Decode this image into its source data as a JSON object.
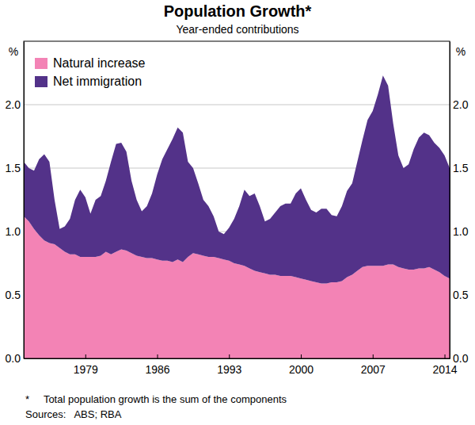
{
  "chart_data": {
    "type": "area",
    "title": "Population Growth*",
    "subtitle": "Year-ended contributions",
    "y_label": "%",
    "footnote": "*     Total population growth is the sum of the components",
    "sources": "Sources:   ABS; RBA",
    "stacked": true,
    "grid": true,
    "legend": "top-left",
    "x": [
      1973,
      1973.5,
      1974,
      1974.5,
      1975,
      1975.5,
      1976,
      1976.5,
      1977,
      1977.5,
      1978,
      1978.5,
      1979,
      1979.5,
      1980,
      1980.5,
      1981,
      1981.5,
      1982,
      1982.5,
      1983,
      1983.5,
      1984,
      1984.5,
      1985,
      1985.5,
      1986,
      1986.5,
      1987,
      1987.5,
      1988,
      1988.5,
      1989,
      1989.5,
      1990,
      1990.5,
      1991,
      1991.5,
      1992,
      1992.5,
      1993,
      1993.5,
      1994,
      1994.5,
      1995,
      1995.5,
      1996,
      1996.5,
      1997,
      1997.5,
      1998,
      1998.5,
      1999,
      1999.5,
      2000,
      2000.5,
      2001,
      2001.5,
      2002,
      2002.5,
      2003,
      2003.5,
      2004,
      2004.5,
      2005,
      2005.5,
      2006,
      2006.5,
      2007,
      2007.5,
      2008,
      2008.5,
      2009,
      2009.5,
      2010,
      2010.5,
      2011,
      2011.5,
      2012,
      2012.5,
      2013,
      2013.5,
      2014,
      2014.5
    ],
    "series": [
      {
        "name": "Natural increase",
        "color": "#f383b5",
        "values": [
          1.12,
          1.08,
          1.02,
          0.97,
          0.93,
          0.91,
          0.9,
          0.87,
          0.84,
          0.82,
          0.82,
          0.8,
          0.8,
          0.8,
          0.8,
          0.81,
          0.84,
          0.82,
          0.84,
          0.86,
          0.85,
          0.83,
          0.81,
          0.8,
          0.79,
          0.79,
          0.78,
          0.77,
          0.77,
          0.76,
          0.78,
          0.76,
          0.8,
          0.83,
          0.82,
          0.81,
          0.8,
          0.8,
          0.79,
          0.78,
          0.77,
          0.75,
          0.74,
          0.73,
          0.71,
          0.69,
          0.68,
          0.67,
          0.66,
          0.66,
          0.65,
          0.65,
          0.65,
          0.64,
          0.63,
          0.62,
          0.61,
          0.6,
          0.59,
          0.59,
          0.6,
          0.6,
          0.61,
          0.64,
          0.66,
          0.69,
          0.72,
          0.73,
          0.73,
          0.73,
          0.73,
          0.74,
          0.74,
          0.72,
          0.71,
          0.7,
          0.7,
          0.71,
          0.71,
          0.72,
          0.7,
          0.68,
          0.65,
          0.63
        ]
      },
      {
        "name": "Net immigration",
        "color": "#533289",
        "values": [
          0.43,
          0.42,
          0.46,
          0.6,
          0.68,
          0.64,
          0.35,
          0.15,
          0.2,
          0.28,
          0.43,
          0.53,
          0.47,
          0.34,
          0.45,
          0.47,
          0.56,
          0.73,
          0.85,
          0.84,
          0.78,
          0.57,
          0.44,
          0.36,
          0.41,
          0.51,
          0.67,
          0.8,
          0.88,
          0.97,
          1.04,
          1.02,
          0.75,
          0.67,
          0.56,
          0.44,
          0.4,
          0.32,
          0.21,
          0.2,
          0.26,
          0.35,
          0.46,
          0.6,
          0.57,
          0.61,
          0.52,
          0.41,
          0.44,
          0.49,
          0.55,
          0.57,
          0.57,
          0.66,
          0.71,
          0.63,
          0.56,
          0.55,
          0.59,
          0.59,
          0.53,
          0.52,
          0.59,
          0.68,
          0.72,
          0.86,
          1.0,
          1.15,
          1.22,
          1.35,
          1.5,
          1.41,
          1.11,
          0.88,
          0.79,
          0.83,
          0.95,
          1.03,
          1.07,
          1.04,
          1.0,
          0.98,
          0.95,
          0.87
        ]
      }
    ],
    "xlim": [
      1973,
      2014.5
    ],
    "xticks": [
      1979,
      1986,
      1993,
      2000,
      2007,
      2014
    ],
    "ylim": [
      0,
      2.5
    ],
    "yticks": [
      {
        "value": 0,
        "label": "0.0"
      },
      0.5,
      {
        "value": 1,
        "label": "1.0"
      },
      1.5,
      {
        "value": 2,
        "label": "2.0"
      }
    ]
  }
}
